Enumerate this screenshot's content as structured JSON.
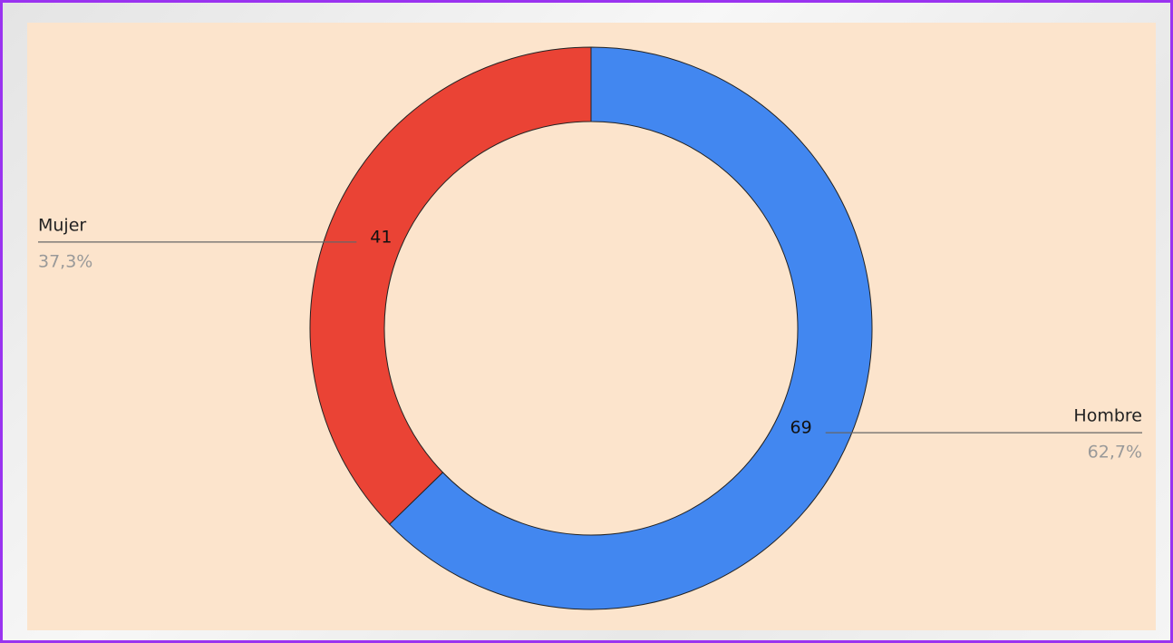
{
  "chart_data": {
    "type": "donut",
    "categories": [
      "Hombre",
      "Mujer"
    ],
    "values": [
      69,
      41
    ],
    "percentages": [
      62.7,
      37.3
    ],
    "percentage_labels": [
      "62,7%",
      "37,3%"
    ],
    "colors": [
      "#4287f0",
      "#ea4335"
    ],
    "background": "#fce4cc"
  }
}
